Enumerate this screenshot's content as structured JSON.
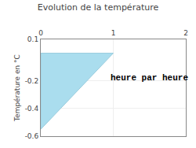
{
  "chart_data": {
    "type": "area",
    "title": "Evolution de la température",
    "y_label": "Température en °C",
    "x": [
      0,
      0,
      1,
      0
    ],
    "values": [
      0,
      -0.55,
      0,
      0
    ],
    "color": "#aaddee",
    "xlim": [
      0,
      2.0
    ],
    "ylim": [
      -0.6,
      0.1
    ],
    "xticks": [
      0,
      1,
      2
    ],
    "yticks": [
      0.1,
      -0.2,
      -0.4,
      -0.6
    ],
    "grid": true,
    "annotations": [
      {
        "text": "heure par heure",
        "x": 1.5,
        "y": -0.18
      }
    ]
  }
}
